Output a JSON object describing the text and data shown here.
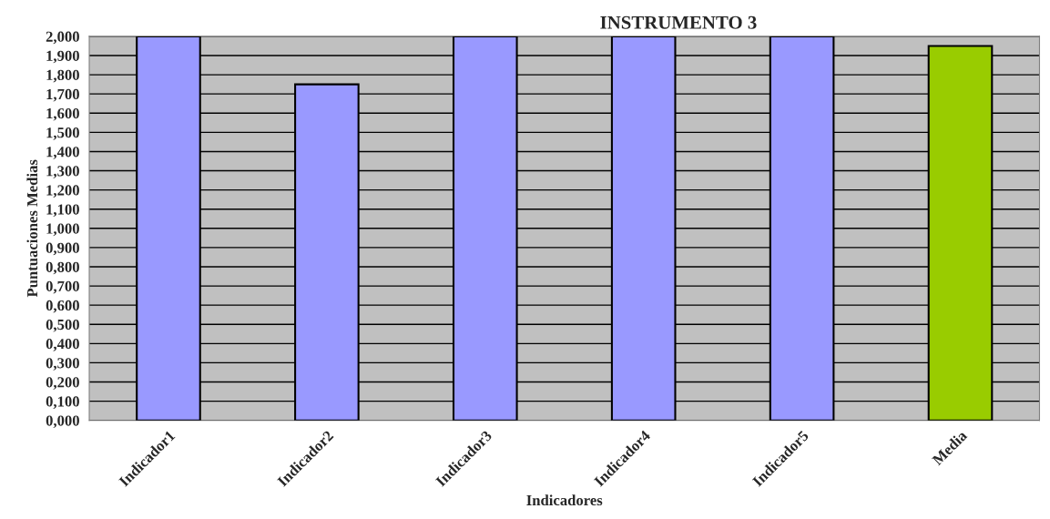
{
  "chart_data": {
    "type": "bar",
    "title": "INSTRUMENTO 3",
    "xlabel": "Indicadores",
    "ylabel": "Puntuaciones Medias",
    "categories": [
      "Indicador1",
      "Indicador2",
      "Indicador3",
      "Indicador4",
      "Indicador5",
      "Media"
    ],
    "values": [
      2.0,
      1.75,
      2.0,
      2.0,
      2.0,
      1.95
    ],
    "colors": [
      "#9999ff",
      "#9999ff",
      "#9999ff",
      "#9999ff",
      "#9999ff",
      "#99cc00"
    ],
    "ylim": [
      0,
      2.0
    ],
    "yticks": [
      {
        "value": 0,
        "label": "0,000"
      },
      {
        "value": 0.1,
        "label": "0,100"
      },
      {
        "value": 0.2,
        "label": "0,200"
      },
      {
        "value": 0.3,
        "label": "0,300"
      },
      {
        "value": 0.4,
        "label": "0,400"
      },
      {
        "value": 0.5,
        "label": "0,500"
      },
      {
        "value": 0.6,
        "label": "0,600"
      },
      {
        "value": 0.7,
        "label": "0,700"
      },
      {
        "value": 0.8,
        "label": "0,800"
      },
      {
        "value": 0.9,
        "label": "0,900"
      },
      {
        "value": 1.0,
        "label": "1,000"
      },
      {
        "value": 1.1,
        "label": "1,100"
      },
      {
        "value": 1.2,
        "label": "1,200"
      },
      {
        "value": 1.3,
        "label": "1,300"
      },
      {
        "value": 1.4,
        "label": "1,400"
      },
      {
        "value": 1.5,
        "label": "1,500"
      },
      {
        "value": 1.6,
        "label": "1,600"
      },
      {
        "value": 1.7,
        "label": "1,700"
      },
      {
        "value": 1.8,
        "label": "1,800"
      },
      {
        "value": 1.9,
        "label": "1,900"
      },
      {
        "value": 2.0,
        "label": "2,000"
      }
    ],
    "grid": "y",
    "legend": false
  }
}
